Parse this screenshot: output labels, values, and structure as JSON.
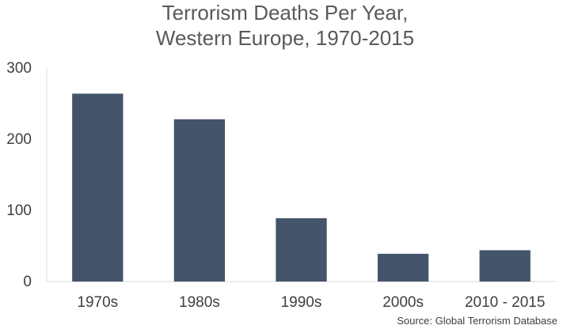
{
  "chart_data": {
    "type": "bar",
    "title_lines": [
      "Terrorism Deaths Per Year,",
      "Western Europe, 1970-2015"
    ],
    "categories": [
      "1970s",
      "1980s",
      "1990s",
      "2000s",
      "2010 - 2015"
    ],
    "values": [
      264,
      228,
      89,
      39,
      44
    ],
    "ylim": [
      0,
      300
    ],
    "yticks": [
      0,
      100,
      200,
      300
    ],
    "grid": false,
    "legend": "none",
    "bar_color": "#44546a",
    "axis_color": "#d9d9d9"
  },
  "source": "Source: Global Terrorism Database"
}
